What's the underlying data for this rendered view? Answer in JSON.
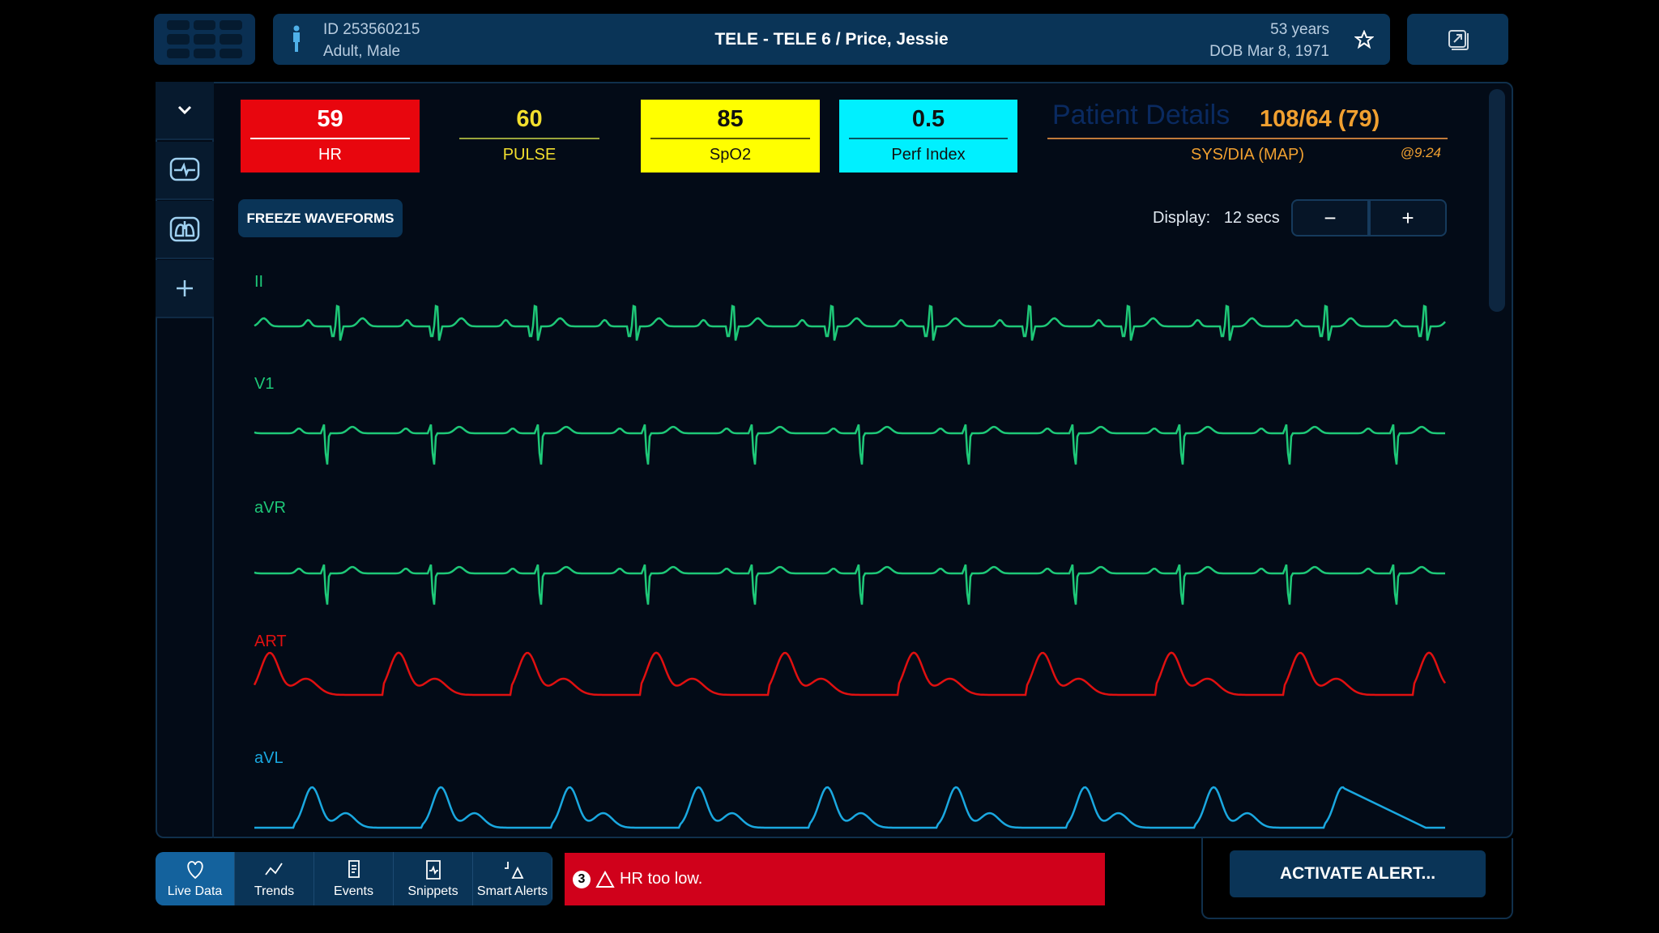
{
  "header": {
    "patient_id": "ID 253560215",
    "patient_type": "Adult, Male",
    "title": "TELE - TELE 6 / Price, Jessie",
    "age": "53 years",
    "dob": "DOB Mar 8, 1971"
  },
  "vitals": [
    {
      "value": "59",
      "label": "HR",
      "bg": "#e8060e",
      "fg": "#ffffff",
      "line": "#ffffff"
    },
    {
      "value": "60",
      "label": "PULSE",
      "bg": "transparent",
      "fg": "#f2df2e",
      "line": "#9aa53c"
    },
    {
      "value": "85",
      "label": "SpO2",
      "bg": "#ffff00",
      "fg": "#111111",
      "line": "#555500"
    },
    {
      "value": "0.5",
      "label": "Perf Index",
      "bg": "#00f0ff",
      "fg": "#111111",
      "line": "#065560"
    }
  ],
  "bp": {
    "value": "108/64 (79)",
    "label": "SYS/DIA (MAP)",
    "time": "@9:24",
    "overlay": "Patient Details",
    "color": "#f0a030"
  },
  "controls": {
    "freeze": "FREEZE WAVEFORMS",
    "display_label": "Display:",
    "display_value": "12 secs",
    "minus": "−",
    "plus": "+"
  },
  "waveforms": [
    {
      "label": "II",
      "color": "#1ec878",
      "type": "ecg"
    },
    {
      "label": "V1",
      "color": "#1ec878",
      "type": "ecgneg"
    },
    {
      "label": "aVR",
      "color": "#1ec878",
      "type": "ecgneg"
    },
    {
      "label": "ART",
      "color": "#e01010",
      "type": "art"
    },
    {
      "label": "aVL",
      "color": "#1aa8e0",
      "type": "pleth"
    }
  ],
  "nav": [
    "Live Data",
    "Trends",
    "Events",
    "Snippets",
    "Smart Alerts"
  ],
  "alert": {
    "count": "3",
    "text": "HR too low."
  },
  "activate": "ACTIVATE ALERT..."
}
